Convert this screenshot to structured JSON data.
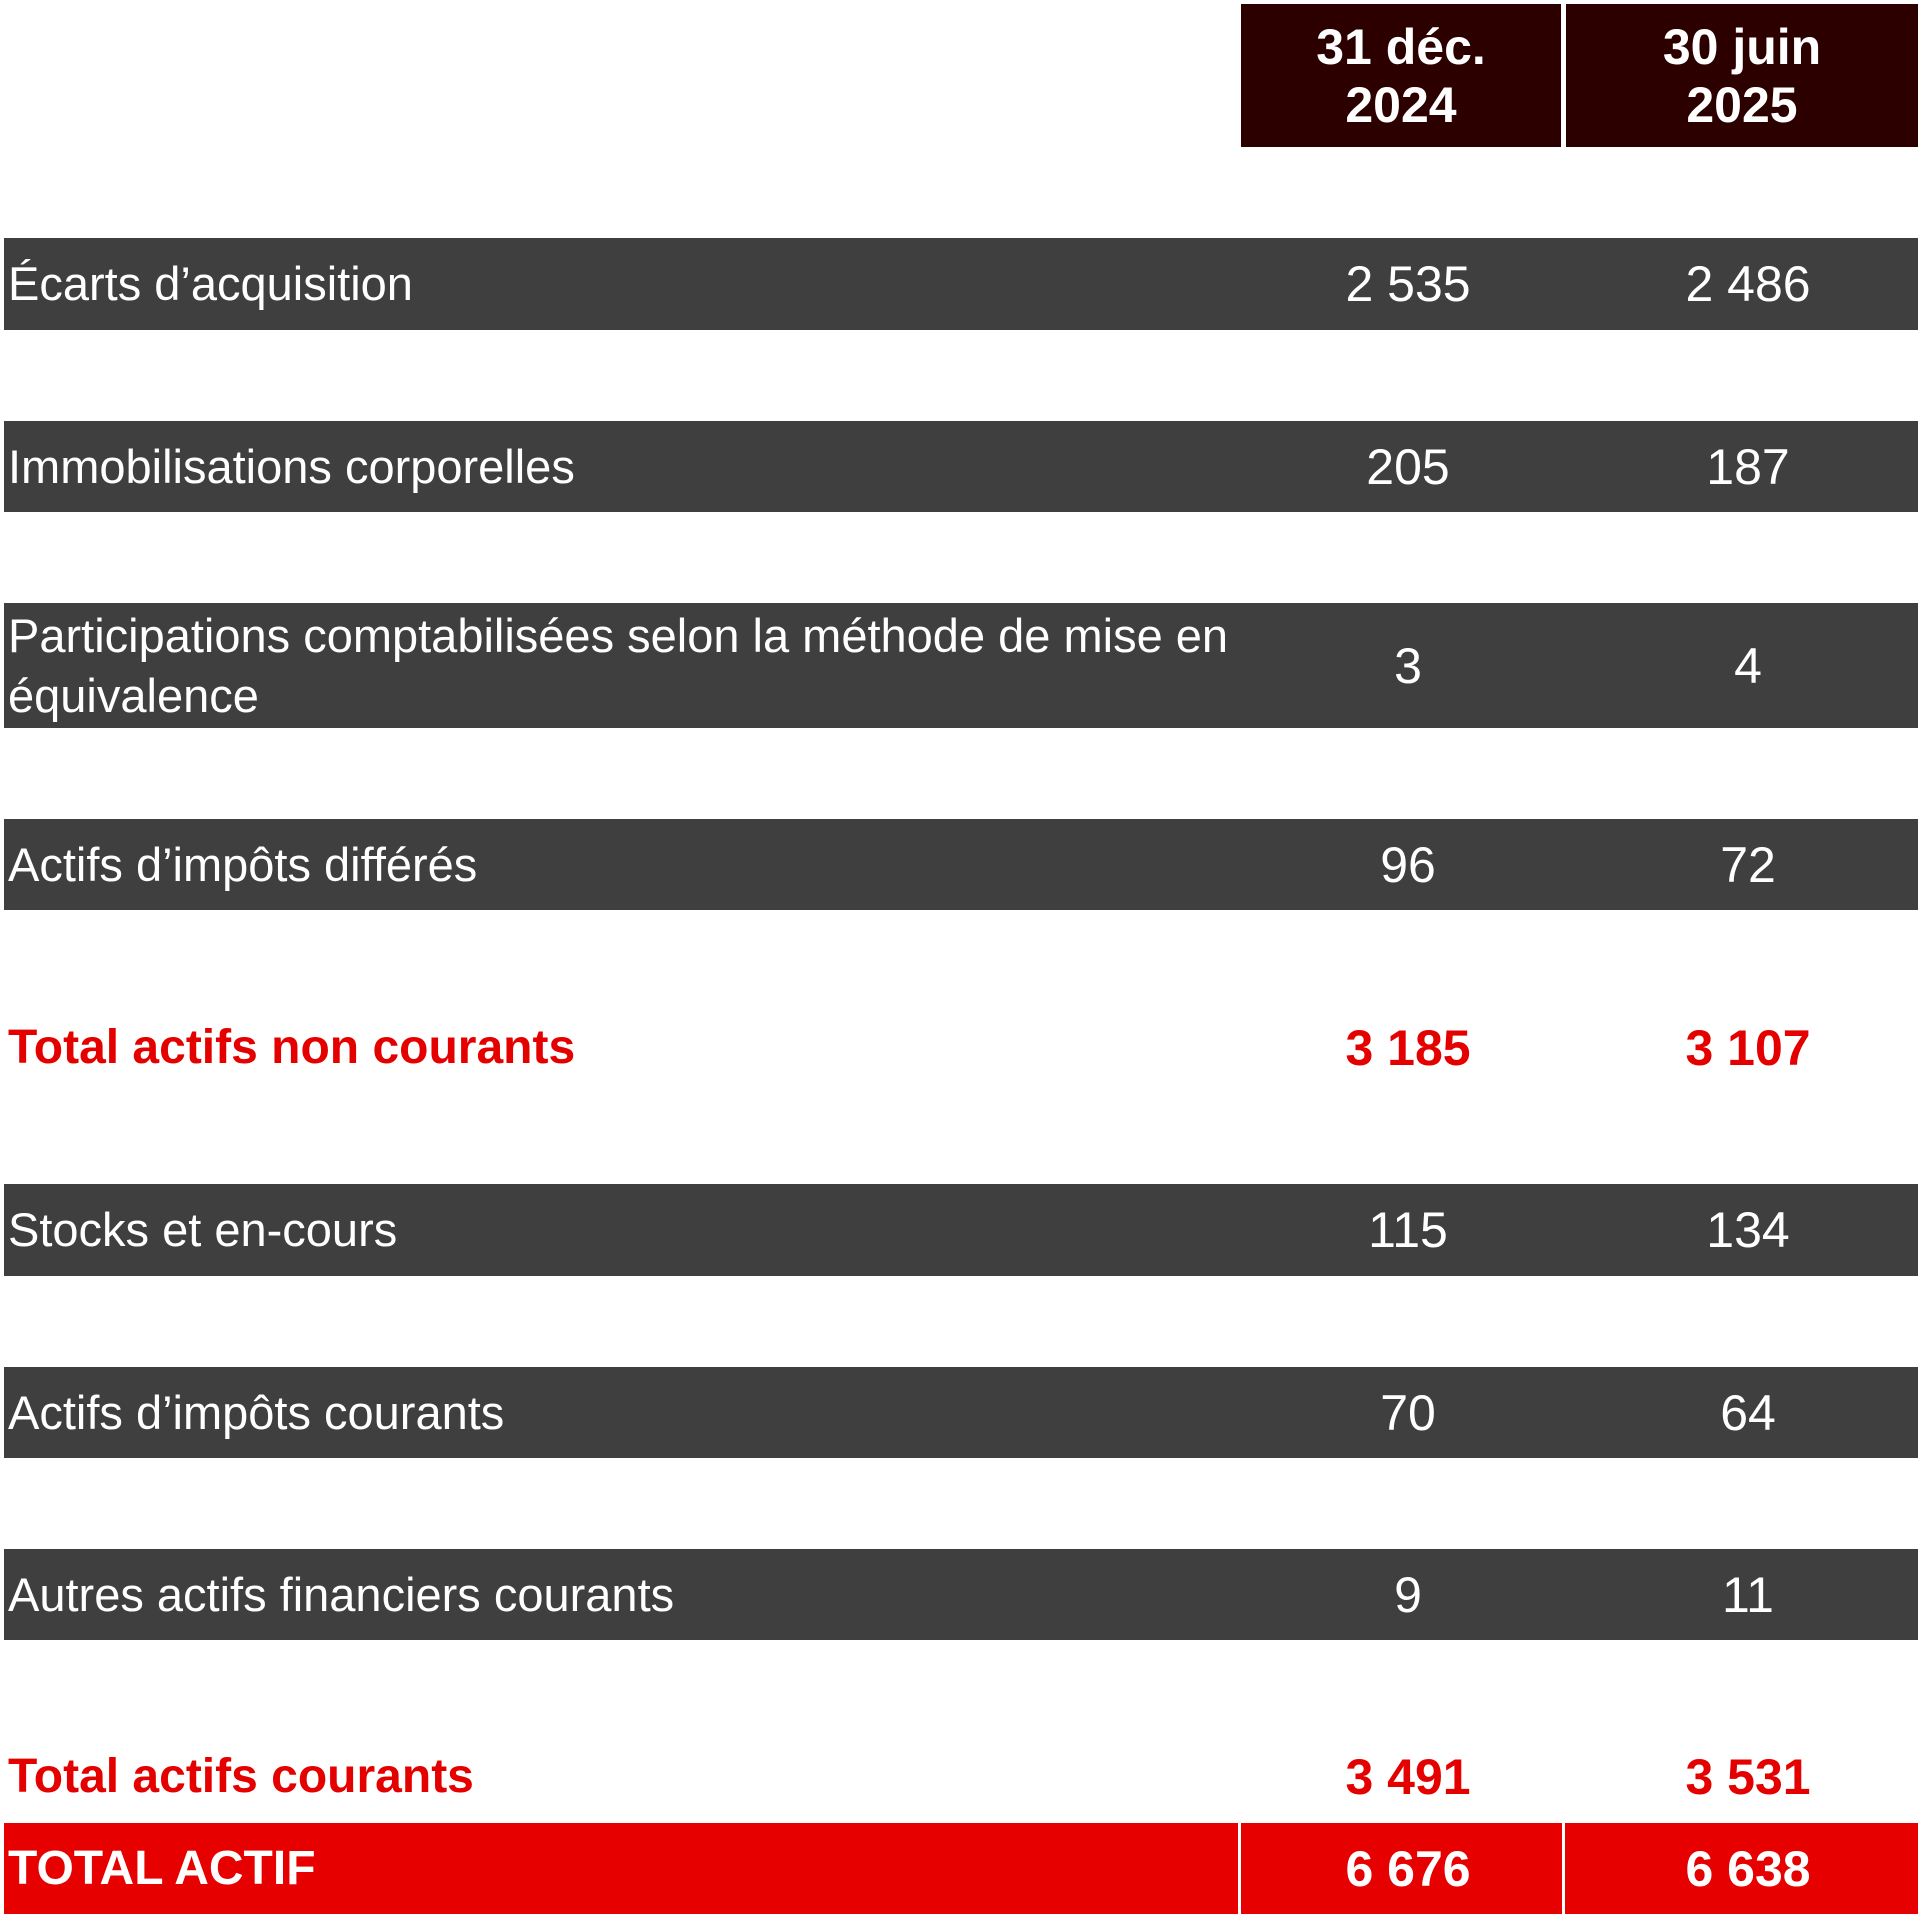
{
  "table": {
    "columns": [
      "31 déc. 2024",
      "30 juin 2025"
    ],
    "column_lines": [
      [
        "31 déc.",
        "2024"
      ],
      [
        "30 juin",
        "2025"
      ]
    ],
    "rows": [
      {
        "label": "Écarts d’acquisition",
        "v2024": "2 535",
        "v2025": "2 486",
        "style": "dark"
      },
      {
        "label": "Immobilisations corporelles",
        "v2024": "205",
        "v2025": "187",
        "style": "dark"
      },
      {
        "label": "Participations comptabilisées selon la méthode de mise en équivalence",
        "v2024": "3",
        "v2025": "4",
        "style": "dark"
      },
      {
        "label": "Actifs d’impôts différés",
        "v2024": "96",
        "v2025": "72",
        "style": "dark"
      },
      {
        "label": "Total actifs non courants",
        "v2024": "3 185",
        "v2025": "3 107",
        "style": "total"
      },
      {
        "label": "Stocks et en-cours",
        "v2024": "115",
        "v2025": "134",
        "style": "dark"
      },
      {
        "label": "Actifs d’impôts courants",
        "v2024": "70",
        "v2025": "64",
        "style": "dark"
      },
      {
        "label": "Autres actifs financiers courants",
        "v2024": "9",
        "v2025": "11",
        "style": "dark"
      },
      {
        "label": "Total actifs courants",
        "v2024": "3 491",
        "v2025": "3 531",
        "style": "total"
      },
      {
        "label": "TOTAL ACTIF",
        "v2024": "6 676",
        "v2025": "6 638",
        "style": "grand"
      }
    ]
  },
  "colors": {
    "header_bg": "#2d0000",
    "row_bg": "#3f3f3f",
    "total_text": "#e50000",
    "grand_bg": "#e60000"
  }
}
